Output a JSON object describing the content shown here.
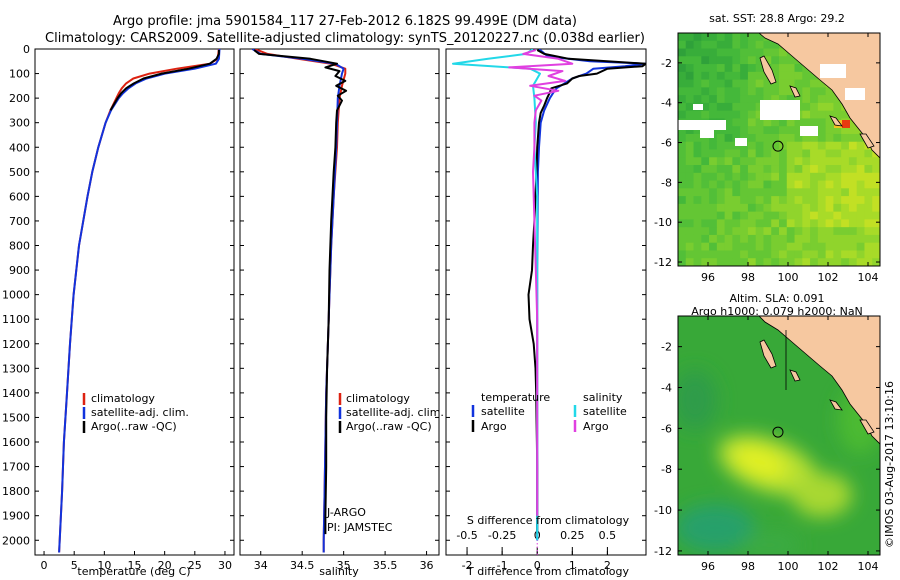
{
  "header": {
    "line1": "Argo profile: jma 5901584_117 27-Feb-2012 6.182S 99.499E (DM data)",
    "line2": "Climatology: CARS2009. Satellite-adjusted climatology: synTS_20120227.nc (0.038d earlier)"
  },
  "colors": {
    "climatology": "#dd2211",
    "satellite": "#1133dd",
    "argo": "#000000",
    "argo_sal_diff": "#e040e0",
    "sat_sal_diff": "#22d8e8",
    "land": "#f6c8a0",
    "track": "#000000"
  },
  "depth_ticks": [
    "0",
    "100",
    "200",
    "300",
    "400",
    "500",
    "600",
    "700",
    "800",
    "900",
    "1000",
    "1100",
    "1200",
    "1300",
    "1400",
    "1500",
    "1600",
    "1700",
    "1800",
    "1900",
    "2000"
  ],
  "chart_data": [
    {
      "type": "line",
      "name": "temperature",
      "xlabel": "temperature (deg C)",
      "xticks": [
        "0",
        "5",
        "10",
        "15",
        "20",
        "25",
        "30"
      ],
      "xlim": [
        -1.5,
        31.5
      ],
      "ylim": [
        0,
        2060
      ],
      "legend": [
        "climatology",
        "satellite-adj. clim.",
        "Argo(..raw -QC)"
      ],
      "series": [
        {
          "name": "climatology",
          "depth": [
            0,
            40,
            60,
            80,
            100,
            120,
            140,
            160,
            180,
            200,
            250,
            300,
            400,
            500,
            600,
            800,
            1000,
            1200,
            1400,
            1600,
            1800,
            2000,
            2050
          ],
          "values": [
            29.0,
            28.8,
            27.5,
            22,
            17.5,
            14.8,
            13.6,
            12.9,
            12.4,
            12.0,
            11.0,
            10.2,
            9.0,
            8.0,
            7.2,
            5.8,
            4.9,
            4.3,
            3.8,
            3.3,
            3.0,
            2.6,
            2.5
          ]
        },
        {
          "name": "satellite-adj. clim.",
          "depth": [
            0,
            40,
            60,
            80,
            100,
            120,
            140,
            160,
            180,
            200,
            250,
            300,
            400,
            500,
            600,
            800,
            1000,
            1200,
            1400,
            1600,
            1800,
            2000,
            2050
          ],
          "values": [
            29.1,
            29.0,
            28.5,
            25,
            20,
            17.0,
            15.2,
            14.0,
            13.1,
            12.4,
            11.1,
            10.2,
            9.0,
            8.0,
            7.2,
            5.8,
            4.9,
            4.3,
            3.8,
            3.3,
            3.0,
            2.6,
            2.5
          ]
        },
        {
          "name": "Argo(..raw -QC)",
          "depth": [
            4,
            20,
            40,
            60,
            80,
            100,
            120,
            140,
            160,
            180,
            200,
            250
          ],
          "values": [
            29.0,
            29.0,
            28.6,
            27.5,
            24,
            19.5,
            16.5,
            14.9,
            13.6,
            12.8,
            12.2,
            11.0
          ]
        }
      ]
    },
    {
      "type": "line",
      "name": "salinity",
      "xlabel": "salinity",
      "xticks": [
        "34",
        "34.5",
        "35",
        "35.5",
        "36"
      ],
      "xlim": [
        33.75,
        36.15
      ],
      "ylim": [
        0,
        2060
      ],
      "legend": [
        "climatology",
        "satellite-adj. clim.",
        "Argo(..raw -QC)"
      ],
      "annotations": [
        "J-ARGO",
        "PI: JAMSTEC"
      ],
      "series": [
        {
          "name": "climatology",
          "depth": [
            0,
            20,
            40,
            60,
            80,
            100,
            150,
            200,
            300,
            400,
            600,
            800,
            1000,
            1200,
            1400,
            1600,
            1800,
            2000,
            2050
          ],
          "values": [
            33.93,
            34.08,
            34.45,
            34.85,
            35.02,
            35.02,
            34.98,
            34.95,
            34.93,
            34.92,
            34.88,
            34.85,
            34.83,
            34.81,
            34.79,
            34.78,
            34.77,
            34.76,
            34.76
          ]
        },
        {
          "name": "satellite-adj. clim.",
          "depth": [
            0,
            20,
            40,
            60,
            80,
            100,
            150,
            200,
            300,
            400,
            600,
            800,
            1000,
            1200,
            1400,
            1600,
            1800,
            2000,
            2050
          ],
          "values": [
            33.9,
            34.0,
            34.5,
            34.9,
            35.0,
            34.98,
            34.95,
            34.93,
            34.92,
            34.91,
            34.88,
            34.85,
            34.83,
            34.81,
            34.79,
            34.78,
            34.77,
            34.76,
            34.76
          ]
        },
        {
          "name": "Argo(..raw -QC)",
          "depth": [
            4,
            20,
            40,
            60,
            75,
            90,
            110,
            130,
            150,
            170,
            190,
            210,
            250,
            300,
            400,
            500,
            700,
            900,
            1100,
            1300,
            1500,
            1700,
            1900,
            1975
          ],
          "values": [
            33.92,
            33.98,
            34.6,
            34.92,
            34.78,
            34.95,
            34.9,
            35.02,
            34.91,
            35.03,
            34.93,
            34.98,
            34.92,
            34.91,
            34.9,
            34.88,
            34.85,
            34.83,
            34.82,
            34.8,
            34.79,
            34.79,
            34.78,
            34.78
          ]
        }
      ]
    },
    {
      "type": "line",
      "name": "differences",
      "xlabel": "T difference from climatology",
      "xlabel2": "S difference from climatology",
      "xticks": [
        "-2",
        "-1",
        "0",
        "1",
        "2"
      ],
      "xlim": [
        -2.6,
        3.1
      ],
      "sticks": [
        "-0.5",
        "-0.25",
        "0",
        "0.25",
        "0.5"
      ],
      "slim": [
        -0.65,
        0.775
      ],
      "ylim": [
        0,
        2060
      ],
      "legend_t_header": "temperature",
      "legend_s_header": "salinity",
      "legend_t": [
        "satellite",
        "Argo"
      ],
      "legend_s": [
        "satellite",
        "Argo"
      ],
      "series_t": [
        {
          "name": "satellite",
          "depth": [
            0,
            30,
            50,
            60,
            70,
            80,
            100,
            120,
            140,
            160,
            180,
            200,
            250,
            300,
            400,
            500,
            700,
            900,
            1100,
            1300,
            1500,
            1700,
            1900,
            2000
          ],
          "values": [
            0.05,
            0.3,
            1.5,
            3.1,
            2.5,
            1.6,
            1.4,
            1.0,
            0.78,
            0.55,
            0.45,
            0.36,
            0.2,
            0.1,
            0.05,
            0.02,
            0.01,
            0,
            0,
            0,
            0,
            0,
            0,
            0
          ]
        },
        {
          "name": "Argo",
          "depth": [
            4,
            20,
            40,
            60,
            70,
            80,
            100,
            110,
            120,
            140,
            160,
            180,
            200,
            230,
            260,
            300,
            400,
            500,
            600,
            700,
            800,
            900,
            1000,
            1100,
            1200,
            1300,
            1400,
            1500,
            1600,
            1700,
            1800,
            1900,
            1975
          ],
          "values": [
            0,
            0.2,
            0.9,
            3.1,
            3.0,
            2.0,
            1.7,
            1.2,
            1.0,
            0.85,
            0.4,
            0.35,
            0.28,
            0.2,
            0.1,
            0.05,
            0,
            -0.02,
            -0.05,
            -0.08,
            -0.12,
            -0.15,
            -0.25,
            -0.22,
            -0.1,
            -0.05,
            -0.03,
            -0.02,
            -0.01,
            0,
            0,
            0,
            0
          ]
        }
      ],
      "series_s": [
        {
          "name": "satellite",
          "depth": [
            0,
            20,
            40,
            60,
            80,
            100,
            150,
            200,
            300,
            400,
            500,
            600,
            800,
            1000,
            1200,
            1400,
            1600,
            1800,
            2000
          ],
          "values": [
            -0.03,
            -0.08,
            -0.35,
            -0.6,
            -0.05,
            0.02,
            -0.03,
            -0.02,
            -0.01,
            -0.02,
            -0.01,
            0,
            0,
            0,
            0,
            0,
            0,
            0,
            0
          ]
        },
        {
          "name": "Argo",
          "depth": [
            4,
            20,
            40,
            60,
            75,
            90,
            110,
            130,
            150,
            170,
            190,
            210,
            250,
            300,
            400,
            500,
            700,
            900,
            1100,
            1300,
            1500,
            1700,
            1900
          ],
          "values": [
            -0.01,
            -0.1,
            0.15,
            0.25,
            -0.2,
            0.18,
            0.08,
            0.2,
            -0.05,
            0.15,
            -0.02,
            0.03,
            -0.01,
            -0.02,
            -0.02,
            -0.03,
            -0.02,
            -0.01,
            0,
            0,
            0,
            0,
            0
          ]
        }
      ]
    },
    {
      "type": "heatmap",
      "name": "sst-map",
      "title": "sat. SST: 28.8  Argo: 29.2",
      "xticks": [
        "96",
        "98",
        "100",
        "102",
        "104"
      ],
      "yticks": [
        "-2",
        "-4",
        "-6",
        "-8",
        "-10",
        "-12"
      ],
      "xlim": [
        94.5,
        104.6
      ],
      "ylim": [
        -12.2,
        -0.5
      ],
      "profile_marker": {
        "lon": 99.499,
        "lat": -6.182
      }
    },
    {
      "type": "heatmap",
      "name": "sla-map",
      "title": "Altim. SLA: 0.091",
      "subtitle": "Argo h1000: 0.079 h2000: NaN",
      "xticks": [
        "96",
        "98",
        "100",
        "102",
        "104"
      ],
      "yticks": [
        "-2",
        "-4",
        "-6",
        "-8",
        "-10",
        "-12"
      ],
      "xlim": [
        94.5,
        104.6
      ],
      "ylim": [
        -12.2,
        -0.5
      ],
      "profile_marker": {
        "lon": 99.499,
        "lat": -6.182
      }
    }
  ],
  "footer": {
    "credit": "©IMOS 03-Aug-2017 13:10:16"
  }
}
